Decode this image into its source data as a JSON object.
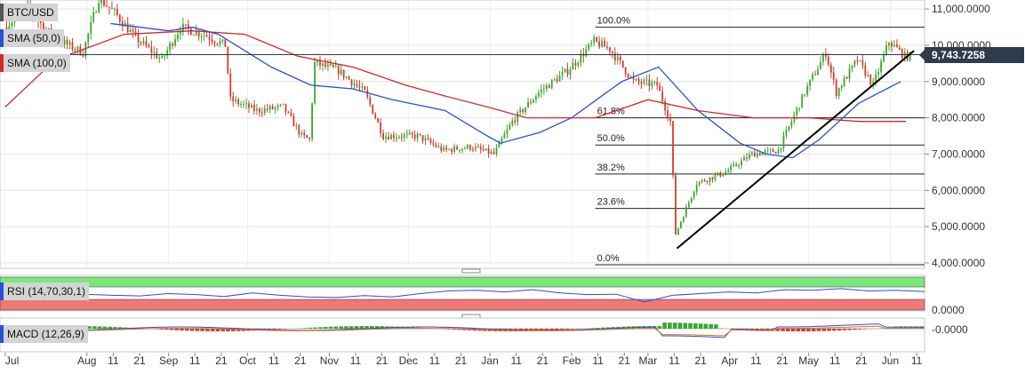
{
  "symbol": "BTC/USD",
  "indicators": {
    "sma50": "SMA (50,0)",
    "sma100": "SMA (100,0)",
    "rsi": "RSI (14,70,30,1)",
    "macd": "MACD (12,26,9)"
  },
  "last_price": "9,743.7258",
  "colors": {
    "up": "#37a82c",
    "down": "#d33a2c",
    "sma50": "#2b4fd8",
    "sma100": "#d12a2a",
    "trendline": "#000000",
    "fib": "#222222",
    "rsi_over": "#7be77b",
    "rsi_under": "#f07878",
    "grid": "#e4e4e4"
  },
  "chart_data": {
    "type": "candlestick",
    "title": "BTC/USD",
    "y_axis": {
      "min": 3900000,
      "max": 11200000,
      "ticks": [
        4000000,
        5000000,
        6000000,
        7000000,
        8000000,
        9000000,
        10000000,
        11000000
      ],
      "tick_labels": [
        "4,000.0000",
        "5,000.0000",
        "6,000.0000",
        "7,000.0000",
        "8,000.0000",
        "9,000.0000",
        "10,000.0000",
        "11,000.0000"
      ]
    },
    "x_axis": {
      "labels": [
        "Jul",
        "Aug",
        "11",
        "21",
        "Sep",
        "11",
        "21",
        "Oct",
        "11",
        "21",
        "Nov",
        "11",
        "21",
        "Dec",
        "11",
        "21",
        "Jan",
        "11",
        "21",
        "Feb",
        "11",
        "21",
        "Mar",
        "11",
        "21",
        "Apr",
        "11",
        "21",
        "May",
        "11",
        "21",
        "Jun",
        "11"
      ]
    },
    "price_path": [
      [
        "2019-07-01",
        10500
      ],
      [
        "2019-07-10",
        11000
      ],
      [
        "2019-07-20",
        10200
      ],
      [
        "2019-07-31",
        9800
      ],
      [
        "2019-08-06",
        11300
      ],
      [
        "2019-08-12",
        10900
      ],
      [
        "2019-08-20",
        10200
      ],
      [
        "2019-08-30",
        9600
      ],
      [
        "2019-09-06",
        10500
      ],
      [
        "2019-09-15",
        10300
      ],
      [
        "2019-09-23",
        10000
      ],
      [
        "2019-09-25",
        8500
      ],
      [
        "2019-10-05",
        8200
      ],
      [
        "2019-10-15",
        8300
      ],
      [
        "2019-10-22",
        7500
      ],
      [
        "2019-10-25",
        7400
      ],
      [
        "2019-10-27",
        9500
      ],
      [
        "2019-11-05",
        9300
      ],
      [
        "2019-11-15",
        8700
      ],
      [
        "2019-11-22",
        7500
      ],
      [
        "2019-11-30",
        7500
      ],
      [
        "2019-12-05",
        7500
      ],
      [
        "2019-12-15",
        7100
      ],
      [
        "2019-12-25",
        7200
      ],
      [
        "2020-01-03",
        7000
      ],
      [
        "2020-01-10",
        7900
      ],
      [
        "2020-01-20",
        8700
      ],
      [
        "2020-01-31",
        9300
      ],
      [
        "2020-02-10",
        10100
      ],
      [
        "2020-02-16",
        9900
      ],
      [
        "2020-02-25",
        9000
      ],
      [
        "2020-03-05",
        8900
      ],
      [
        "2020-03-10",
        7900
      ],
      [
        "2020-03-12",
        4800
      ],
      [
        "2020-03-20",
        6200
      ],
      [
        "2020-03-31",
        6500
      ],
      [
        "2020-04-10",
        7000
      ],
      [
        "2020-04-20",
        7100
      ],
      [
        "2020-04-30",
        8700
      ],
      [
        "2020-05-08",
        9800
      ],
      [
        "2020-05-12",
        8700
      ],
      [
        "2020-05-20",
        9600
      ],
      [
        "2020-05-26",
        8900
      ],
      [
        "2020-06-01",
        10100
      ],
      [
        "2020-06-07",
        9700
      ]
    ],
    "sma50": [
      [
        "2019-08-10",
        10600
      ],
      [
        "2019-09-01",
        10400
      ],
      [
        "2019-09-10",
        10500
      ],
      [
        "2019-09-20",
        10300
      ],
      [
        "2019-10-10",
        9400
      ],
      [
        "2019-10-25",
        8900
      ],
      [
        "2019-11-10",
        8800
      ],
      [
        "2019-11-25",
        8500
      ],
      [
        "2019-12-15",
        8200
      ],
      [
        "2019-12-31",
        7500
      ],
      [
        "2020-01-05",
        7300
      ],
      [
        "2020-01-20",
        7600
      ],
      [
        "2020-02-01",
        8000
      ],
      [
        "2020-02-20",
        9000
      ],
      [
        "2020-03-05",
        9400
      ],
      [
        "2020-03-20",
        8200
      ],
      [
        "2020-04-05",
        7300
      ],
      [
        "2020-04-15",
        7000
      ],
      [
        "2020-04-25",
        6900
      ],
      [
        "2020-05-05",
        7400
      ],
      [
        "2020-05-20",
        8400
      ],
      [
        "2020-06-05",
        9000
      ]
    ],
    "sma100": [
      [
        "2019-07-01",
        8300
      ],
      [
        "2019-07-20",
        9600
      ],
      [
        "2019-08-15",
        10300
      ],
      [
        "2019-09-10",
        10400
      ],
      [
        "2019-09-30",
        10300
      ],
      [
        "2019-10-20",
        9700
      ],
      [
        "2019-11-10",
        9400
      ],
      [
        "2019-11-30",
        8900
      ],
      [
        "2019-12-15",
        8600
      ],
      [
        "2019-12-31",
        8300
      ],
      [
        "2020-01-15",
        8000
      ],
      [
        "2020-02-10",
        8000
      ],
      [
        "2020-03-01",
        8500
      ],
      [
        "2020-03-20",
        8200
      ],
      [
        "2020-04-10",
        8000
      ],
      [
        "2020-05-01",
        8000
      ],
      [
        "2020-05-20",
        7900
      ],
      [
        "2020-06-07",
        7900
      ]
    ],
    "fibonacci": {
      "levels": [
        {
          "label": "100.0%",
          "price": 10500
        },
        {
          "label": "61.8%",
          "price": 8000
        },
        {
          "label": "50.0%",
          "price": 7250
        },
        {
          "label": "38.2%",
          "price": 6450
        },
        {
          "label": "23.6%",
          "price": 5500
        },
        {
          "label": "0.0%",
          "price": 3950
        }
      ]
    },
    "trendline": [
      [
        "2020-03-12",
        4400
      ],
      [
        "2020-06-10",
        9850
      ]
    ],
    "last_price_line": 9743.7258,
    "rsi": {
      "upper": 70,
      "lower": 30,
      "values": [
        55,
        50,
        52,
        48,
        45,
        43,
        50,
        47,
        41,
        52,
        45,
        40,
        38,
        44,
        40,
        50,
        58,
        60,
        55,
        62,
        52,
        47,
        48,
        25,
        45,
        50,
        55,
        52,
        62,
        60,
        65,
        58,
        60,
        56
      ]
    },
    "macd": {
      "y_axis_labels": [
        "-0.0000"
      ]
    }
  }
}
